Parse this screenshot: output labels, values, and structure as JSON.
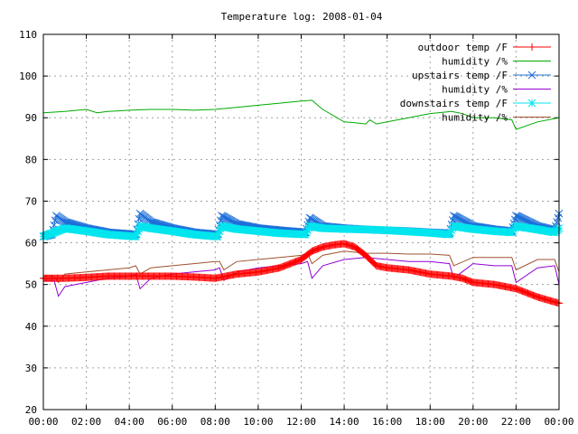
{
  "chart_data": {
    "type": "line",
    "title": "Temperature log: 2008-01-04",
    "xlabel": "",
    "ylabel": "",
    "x_ticks": [
      "00:00",
      "02:00",
      "04:00",
      "06:00",
      "08:00",
      "10:00",
      "12:00",
      "14:00",
      "16:00",
      "18:00",
      "20:00",
      "22:00",
      "00:00"
    ],
    "xlim": [
      0,
      24
    ],
    "ylim": [
      20,
      110
    ],
    "y_ticks": [
      20,
      30,
      40,
      50,
      60,
      70,
      80,
      90,
      100,
      110
    ],
    "grid": true,
    "legend_position": "top-right",
    "series": [
      {
        "name": "outdoor temp /F",
        "color": "#ff0000",
        "marker": "plus",
        "points": [
          [
            0,
            51.5
          ],
          [
            1,
            51.5
          ],
          [
            2,
            51.7
          ],
          [
            3,
            52
          ],
          [
            4,
            52
          ],
          [
            5,
            52
          ],
          [
            6,
            52
          ],
          [
            7,
            51.8
          ],
          [
            8,
            51.5
          ],
          [
            8.5,
            52
          ],
          [
            9,
            52.5
          ],
          [
            10,
            53
          ],
          [
            11,
            54
          ],
          [
            11.5,
            55
          ],
          [
            12,
            56
          ],
          [
            12.5,
            58
          ],
          [
            13,
            59
          ],
          [
            13.5,
            59.5
          ],
          [
            14,
            59.8
          ],
          [
            14.5,
            59
          ],
          [
            15,
            57
          ],
          [
            15.5,
            54.5
          ],
          [
            16,
            54
          ],
          [
            17,
            53.5
          ],
          [
            18,
            52.5
          ],
          [
            19,
            52
          ],
          [
            19.5,
            51.5
          ],
          [
            20,
            50.5
          ],
          [
            21,
            50
          ],
          [
            22,
            49
          ],
          [
            23,
            47
          ],
          [
            24,
            45.5
          ]
        ]
      },
      {
        "name": "humidity /%",
        "color": "#00aa00",
        "marker": "none",
        "points": [
          [
            0,
            91.2
          ],
          [
            1,
            91.5
          ],
          [
            2,
            92
          ],
          [
            2.5,
            91.2
          ],
          [
            3,
            91.5
          ],
          [
            4,
            91.8
          ],
          [
            5,
            92
          ],
          [
            6,
            92
          ],
          [
            7,
            91.8
          ],
          [
            8,
            92
          ],
          [
            9,
            92.5
          ],
          [
            10,
            93
          ],
          [
            11,
            93.5
          ],
          [
            12,
            94
          ],
          [
            12.5,
            94.2
          ],
          [
            13,
            92
          ],
          [
            13.5,
            90.5
          ],
          [
            14,
            89
          ],
          [
            14.5,
            88.8
          ],
          [
            15,
            88.5
          ],
          [
            15.2,
            89.5
          ],
          [
            15.5,
            88.5
          ],
          [
            16,
            89
          ],
          [
            17,
            90
          ],
          [
            18,
            91
          ],
          [
            19,
            91.5
          ],
          [
            19.5,
            91
          ],
          [
            20,
            90
          ],
          [
            21,
            90
          ],
          [
            21.8,
            89.5
          ],
          [
            22,
            87.2
          ],
          [
            23,
            89
          ],
          [
            24,
            90
          ]
        ]
      },
      {
        "name": "upstairs temp /F",
        "color": "#1e6fd9",
        "marker": "cross",
        "points": [
          [
            0,
            61.5
          ],
          [
            0.4,
            62
          ],
          [
            0.6,
            66.5
          ],
          [
            1,
            65
          ],
          [
            2,
            63.5
          ],
          [
            3,
            62.5
          ],
          [
            4.3,
            62
          ],
          [
            4.5,
            67
          ],
          [
            5,
            65
          ],
          [
            6,
            63.5
          ],
          [
            7,
            62.5
          ],
          [
            8.1,
            62
          ],
          [
            8.3,
            66.5
          ],
          [
            9,
            64.5
          ],
          [
            10,
            63.5
          ],
          [
            11,
            63
          ],
          [
            12.2,
            62.5
          ],
          [
            12.4,
            66
          ],
          [
            13,
            64
          ],
          [
            14,
            63.5
          ],
          [
            15,
            63.2
          ],
          [
            16,
            63
          ],
          [
            17,
            62.8
          ],
          [
            18,
            62.5
          ],
          [
            18.9,
            62.3
          ],
          [
            19.1,
            66.5
          ],
          [
            20,
            64
          ],
          [
            21,
            63.2
          ],
          [
            21.8,
            62.8
          ],
          [
            22,
            66.5
          ],
          [
            23,
            64
          ],
          [
            23.8,
            63
          ],
          [
            24,
            67
          ]
        ]
      },
      {
        "name": "humidity /%",
        "color": "#9400d3",
        "marker": "none",
        "points": [
          [
            0,
            51
          ],
          [
            0.5,
            51
          ],
          [
            0.7,
            47.2
          ],
          [
            1,
            49.5
          ],
          [
            2,
            50.5
          ],
          [
            3,
            51.5
          ],
          [
            4,
            52
          ],
          [
            4.3,
            52.5
          ],
          [
            4.5,
            49
          ],
          [
            5,
            51.5
          ],
          [
            6,
            52.5
          ],
          [
            7,
            53
          ],
          [
            8,
            53.5
          ],
          [
            8.2,
            54
          ],
          [
            8.4,
            51
          ],
          [
            9,
            53
          ],
          [
            10,
            54
          ],
          [
            11,
            54.5
          ],
          [
            12,
            55
          ],
          [
            12.3,
            55.5
          ],
          [
            12.5,
            51.5
          ],
          [
            13,
            54.5
          ],
          [
            14,
            56
          ],
          [
            15,
            56.5
          ],
          [
            16,
            56
          ],
          [
            17,
            55.5
          ],
          [
            18,
            55.5
          ],
          [
            18.9,
            55
          ],
          [
            19.1,
            51.5
          ],
          [
            20,
            55
          ],
          [
            21,
            54.5
          ],
          [
            21.8,
            54.5
          ],
          [
            22,
            50.5
          ],
          [
            23,
            54
          ],
          [
            23.8,
            54.5
          ],
          [
            24,
            50
          ]
        ]
      },
      {
        "name": "downstairs temp /F",
        "color": "#00e5ee",
        "marker": "star",
        "points": [
          [
            0,
            61.5
          ],
          [
            0.5,
            62.5
          ],
          [
            1,
            63.5
          ],
          [
            2,
            62.8
          ],
          [
            3,
            62
          ],
          [
            4.3,
            61.5
          ],
          [
            4.5,
            64
          ],
          [
            5,
            63.5
          ],
          [
            6,
            62.8
          ],
          [
            7,
            62
          ],
          [
            8.1,
            61.5
          ],
          [
            8.3,
            64
          ],
          [
            9,
            63.3
          ],
          [
            10,
            62.8
          ],
          [
            11,
            62.3
          ],
          [
            12.2,
            62
          ],
          [
            12.4,
            64
          ],
          [
            13,
            63.5
          ],
          [
            14,
            63.3
          ],
          [
            15,
            63.2
          ],
          [
            16,
            63
          ],
          [
            17,
            62.7
          ],
          [
            18,
            62.4
          ],
          [
            18.9,
            62
          ],
          [
            19.1,
            64
          ],
          [
            20,
            63.3
          ],
          [
            21,
            62.8
          ],
          [
            21.8,
            62.5
          ],
          [
            22,
            64
          ],
          [
            23,
            63.2
          ],
          [
            23.8,
            62.5
          ],
          [
            24,
            63.5
          ]
        ]
      },
      {
        "name": "humidity /%",
        "color": "#a0522d",
        "marker": "none",
        "points": [
          [
            0,
            52
          ],
          [
            0.5,
            52
          ],
          [
            0.7,
            50.5
          ],
          [
            1,
            52.5
          ],
          [
            2,
            53
          ],
          [
            3,
            53.5
          ],
          [
            4,
            54
          ],
          [
            4.3,
            54.5
          ],
          [
            4.5,
            52.5
          ],
          [
            5,
            54
          ],
          [
            6,
            54.5
          ],
          [
            7,
            55
          ],
          [
            8,
            55.5
          ],
          [
            8.2,
            55.5
          ],
          [
            8.4,
            53.5
          ],
          [
            9,
            55.5
          ],
          [
            10,
            56
          ],
          [
            11,
            56.5
          ],
          [
            12,
            57
          ],
          [
            12.3,
            57.5
          ],
          [
            12.5,
            55
          ],
          [
            13,
            57
          ],
          [
            14,
            58
          ],
          [
            15,
            57.5
          ],
          [
            16,
            57.5
          ],
          [
            17,
            57.3
          ],
          [
            18,
            57.3
          ],
          [
            18.9,
            57
          ],
          [
            19.1,
            54.5
          ],
          [
            20,
            56.5
          ],
          [
            21,
            56.5
          ],
          [
            21.8,
            56.5
          ],
          [
            22,
            53.5
          ],
          [
            23,
            56
          ],
          [
            23.8,
            56
          ],
          [
            24,
            53
          ]
        ]
      }
    ]
  }
}
